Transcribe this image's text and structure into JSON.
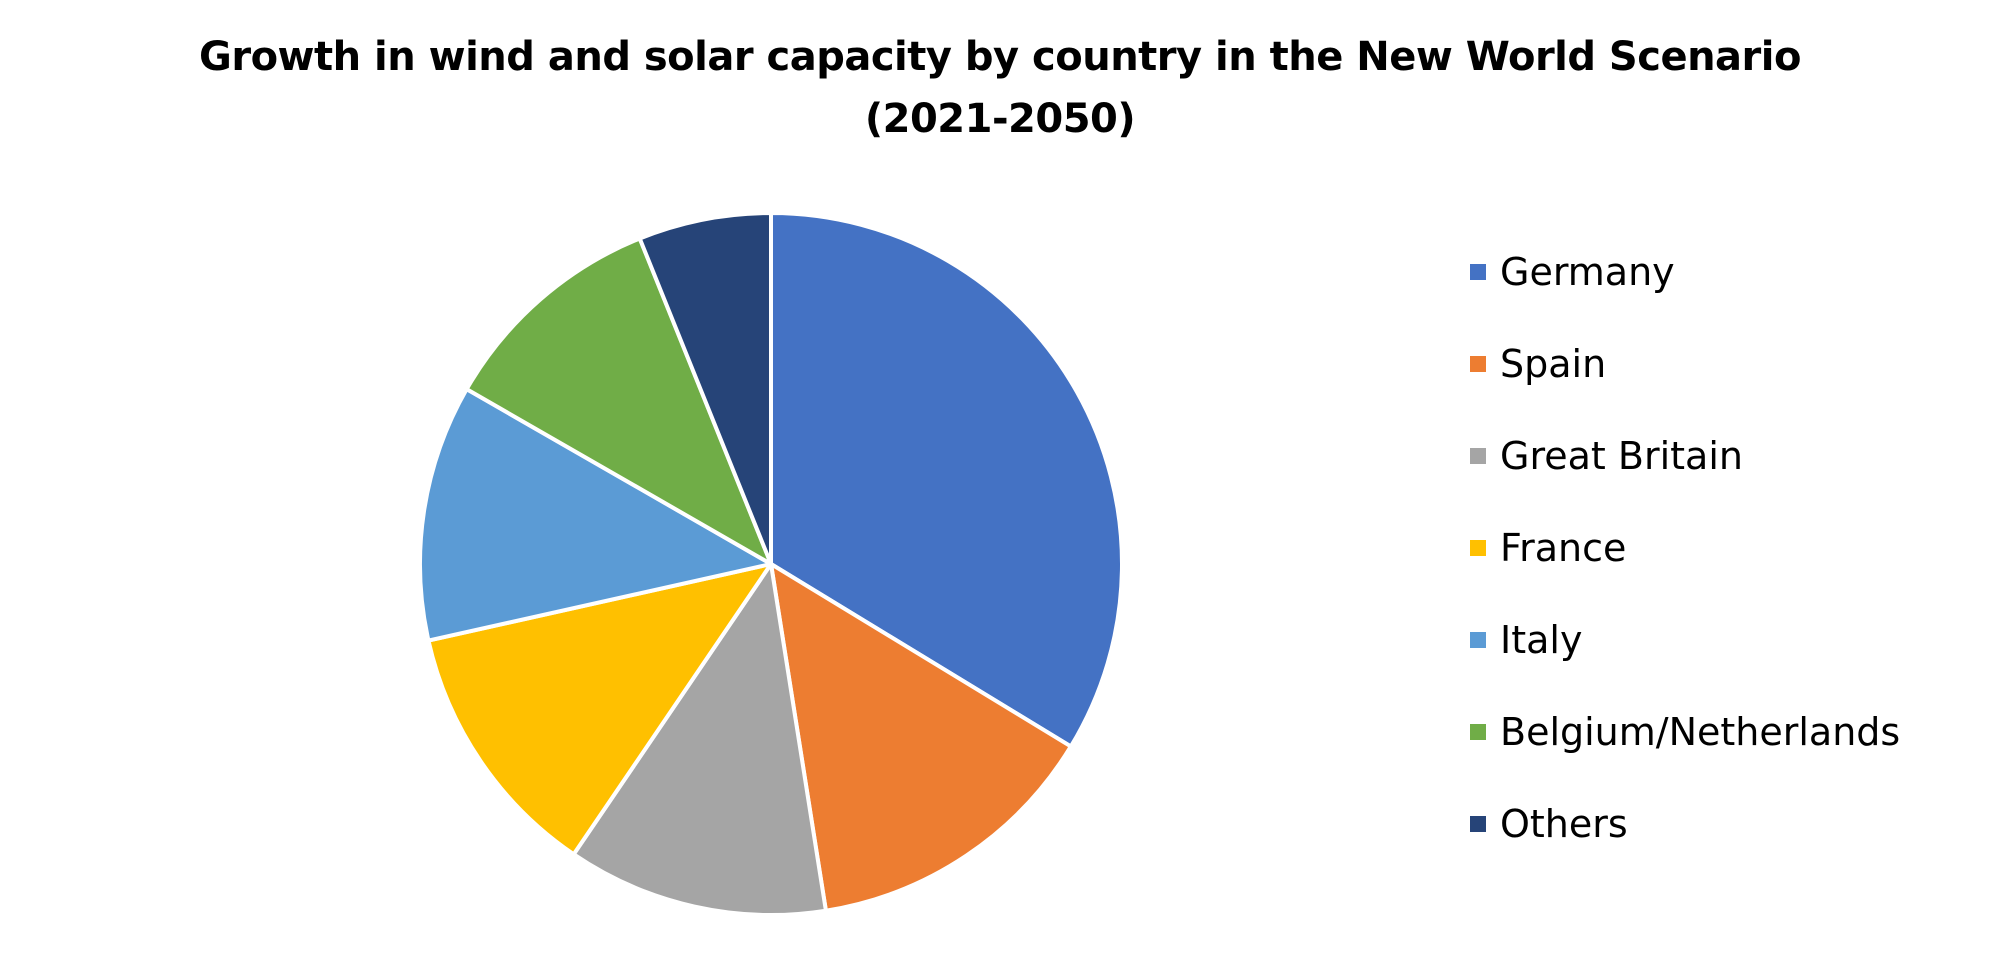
{
  "chart_data": {
    "type": "pie",
    "title": "Growth in wind and solar capacity by country in the New World Scenario (2021-2050)",
    "title_lines": [
      "Growth in wind and solar capacity by country in the New World Scenario",
      "(2021-2050)"
    ],
    "categories": [
      "Germany",
      "Spain",
      "Great Britain",
      "France",
      "Italy",
      "Belgium/Netherlands",
      "Others"
    ],
    "values": [
      33.7,
      13.8,
      12.0,
      12.0,
      11.8,
      10.6,
      6.1
    ],
    "colors": [
      "#4472C4",
      "#ED7D31",
      "#A5A5A5",
      "#FFC000",
      "#5B9BD5",
      "#70AD47",
      "#264478"
    ],
    "legend_position": "right",
    "start_angle": "12 o'clock",
    "direction": "clockwise"
  }
}
